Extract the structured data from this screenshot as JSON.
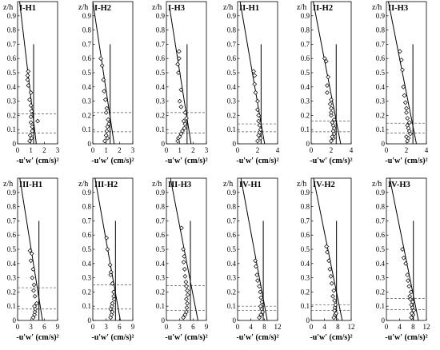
{
  "chart_data": [
    {
      "type": "scatter",
      "title": "I-H1",
      "ylabel": "z/h",
      "xlabel": "-u'w' (cm/s)²",
      "xlim": [
        0,
        3
      ],
      "ylim": [
        0,
        1
      ],
      "xticks": [
        0,
        1,
        2,
        3
      ],
      "points": [
        [
          0.9,
          0.02
        ],
        [
          1.05,
          0.04
        ],
        [
          0.95,
          0.06
        ],
        [
          1.1,
          0.09
        ],
        [
          1.1,
          0.12
        ],
        [
          1.0,
          0.15
        ],
        [
          1.5,
          0.16
        ],
        [
          1.0,
          0.19
        ],
        [
          1.05,
          0.23
        ],
        [
          1.0,
          0.27
        ],
        [
          0.9,
          0.31
        ],
        [
          1.0,
          0.36
        ],
        [
          0.8,
          0.41
        ],
        [
          0.75,
          0.45
        ],
        [
          0.75,
          0.48
        ],
        [
          0.8,
          0.51
        ]
      ],
      "fit_line": [
        [
          0.15,
          1.0
        ],
        [
          1.4,
          0.0
        ]
      ],
      "vertical_line": {
        "x": 1.2,
        "y0": 0,
        "y1": 0.7
      },
      "dashed_levels": [
        0.21,
        0.075
      ]
    },
    {
      "type": "scatter",
      "title": "I-H2",
      "ylabel": "z/h",
      "xlabel": "-u'w' (cm/s)²",
      "xlim": [
        0,
        3
      ],
      "ylim": [
        0,
        1
      ],
      "xticks": [
        0,
        1,
        2,
        3
      ],
      "points": [
        [
          0.9,
          0.02
        ],
        [
          1.1,
          0.04
        ],
        [
          1.0,
          0.06
        ],
        [
          1.05,
          0.09
        ],
        [
          1.1,
          0.12
        ],
        [
          1.2,
          0.14
        ],
        [
          1.15,
          0.17
        ],
        [
          1.0,
          0.22
        ],
        [
          1.05,
          0.25
        ],
        [
          0.95,
          0.31
        ],
        [
          0.85,
          0.37
        ],
        [
          0.8,
          0.45
        ],
        [
          0.7,
          0.55
        ],
        [
          0.6,
          0.6
        ]
      ],
      "fit_line": [
        [
          0.0,
          1.0
        ],
        [
          1.6,
          0.0
        ]
      ],
      "vertical_line": {
        "x": 1.3,
        "y0": 0,
        "y1": 0.7
      },
      "dashed_levels": [
        0.22,
        0.085
      ]
    },
    {
      "type": "scatter",
      "title": "I-H3",
      "ylabel": "z/h",
      "xlabel": "-u'w' (cm/s)²",
      "xlim": [
        0,
        3
      ],
      "ylim": [
        0,
        1
      ],
      "xticks": [
        0,
        1,
        2,
        3
      ],
      "points": [
        [
          0.85,
          0.02
        ],
        [
          0.9,
          0.04
        ],
        [
          1.0,
          0.05
        ],
        [
          1.1,
          0.07
        ],
        [
          1.2,
          0.09
        ],
        [
          1.35,
          0.11
        ],
        [
          1.4,
          0.14
        ],
        [
          1.3,
          0.16
        ],
        [
          1.5,
          0.18
        ],
        [
          1.4,
          0.22
        ],
        [
          1.1,
          0.26
        ],
        [
          1.0,
          0.3
        ],
        [
          1.1,
          0.38
        ],
        [
          0.9,
          0.5
        ],
        [
          0.85,
          0.56
        ],
        [
          0.95,
          0.6
        ],
        [
          0.95,
          0.65
        ]
      ],
      "fit_line": [
        [
          0.25,
          0.95
        ],
        [
          1.85,
          0.0
        ]
      ],
      "vertical_line": {
        "x": 1.55,
        "y0": 0,
        "y1": 0.7
      },
      "dashed_levels": [
        0.22,
        0.075
      ]
    },
    {
      "type": "scatter",
      "title": "II-H1",
      "ylabel": "z/h",
      "xlabel": "-u'w' (cm/s)²",
      "xlim": [
        0,
        4
      ],
      "ylim": [
        0,
        1
      ],
      "xticks": [
        0,
        2,
        4
      ],
      "points": [
        [
          2.0,
          0.02
        ],
        [
          2.3,
          0.04
        ],
        [
          2.1,
          0.06
        ],
        [
          2.2,
          0.08
        ],
        [
          2.3,
          0.1
        ],
        [
          2.2,
          0.13
        ],
        [
          2.1,
          0.16
        ],
        [
          2.1,
          0.2
        ],
        [
          2.0,
          0.24
        ],
        [
          2.0,
          0.3
        ],
        [
          1.8,
          0.36
        ],
        [
          1.7,
          0.42
        ],
        [
          1.7,
          0.48
        ],
        [
          1.6,
          0.51
        ]
      ],
      "fit_line": [
        [
          0.25,
          1.0
        ],
        [
          2.7,
          0.0
        ]
      ],
      "vertical_line": {
        "x": 2.35,
        "y0": 0,
        "y1": 0.7
      },
      "dashed_levels": [
        0.14,
        0.085
      ]
    },
    {
      "type": "scatter",
      "title": "II-H2",
      "ylabel": "z/h",
      "xlabel": "-u'w' (cm/s)²",
      "xlim": [
        0,
        4
      ],
      "ylim": [
        0,
        1
      ],
      "xticks": [
        0,
        2,
        4
      ],
      "points": [
        [
          2.0,
          0.02
        ],
        [
          2.2,
          0.04
        ],
        [
          2.1,
          0.05
        ],
        [
          2.3,
          0.07
        ],
        [
          2.2,
          0.09
        ],
        [
          2.3,
          0.11
        ],
        [
          2.2,
          0.13
        ],
        [
          2.1,
          0.15
        ],
        [
          2.3,
          0.17
        ],
        [
          2.0,
          0.2
        ],
        [
          2.0,
          0.22
        ],
        [
          2.0,
          0.25
        ],
        [
          1.9,
          0.28
        ],
        [
          2.0,
          0.31
        ],
        [
          1.6,
          0.36
        ],
        [
          1.6,
          0.41
        ],
        [
          1.7,
          0.47
        ],
        [
          1.5,
          0.58
        ],
        [
          1.35,
          0.6
        ]
      ],
      "fit_line": [
        [
          0.2,
          1.0
        ],
        [
          2.95,
          0.0
        ]
      ],
      "vertical_line": {
        "x": 2.5,
        "y0": 0,
        "y1": 0.7
      },
      "dashed_levels": [
        0.16,
        0.085
      ]
    },
    {
      "type": "scatter",
      "title": "II-H3",
      "ylabel": "z/h",
      "xlabel": "-u'w' (cm/s)²",
      "xlim": [
        0,
        4
      ],
      "ylim": [
        0,
        1
      ],
      "xticks": [
        0,
        2,
        4
      ],
      "points": [
        [
          2.1,
          0.02
        ],
        [
          2.2,
          0.04
        ],
        [
          2.0,
          0.05
        ],
        [
          2.4,
          0.07
        ],
        [
          2.3,
          0.09
        ],
        [
          2.2,
          0.11
        ],
        [
          2.1,
          0.13
        ],
        [
          2.3,
          0.15
        ],
        [
          2.1,
          0.18
        ],
        [
          2.0,
          0.22
        ],
        [
          2.0,
          0.25
        ],
        [
          1.9,
          0.29
        ],
        [
          1.8,
          0.34
        ],
        [
          1.7,
          0.4
        ],
        [
          1.6,
          0.52
        ],
        [
          1.5,
          0.59
        ],
        [
          1.35,
          0.65
        ]
      ],
      "fit_line": [
        [
          0.2,
          1.0
        ],
        [
          3.0,
          0.0
        ]
      ],
      "vertical_line": {
        "x": 2.65,
        "y0": 0,
        "y1": 0.7
      },
      "dashed_levels": [
        0.145,
        0.075
      ]
    },
    {
      "type": "scatter",
      "title": "III-H1",
      "ylabel": "z/h",
      "xlabel": "-u'w' (cm/s)²",
      "xlim": [
        0,
        9
      ],
      "ylim": [
        0,
        1
      ],
      "xticks": [
        0,
        3,
        6,
        9
      ],
      "points": [
        [
          3.5,
          0.02
        ],
        [
          3.8,
          0.04
        ],
        [
          3.9,
          0.06
        ],
        [
          4.0,
          0.08
        ],
        [
          3.8,
          0.1
        ],
        [
          4.3,
          0.12
        ],
        [
          3.9,
          0.17
        ],
        [
          3.6,
          0.21
        ],
        [
          3.7,
          0.25
        ],
        [
          3.3,
          0.3
        ],
        [
          3.5,
          0.36
        ],
        [
          3.0,
          0.42
        ],
        [
          3.2,
          0.47
        ],
        [
          2.8,
          0.49
        ]
      ],
      "fit_line": [
        [
          0.5,
          1.0
        ],
        [
          5.6,
          0.0
        ]
      ],
      "vertical_line": {
        "x": 4.8,
        "y0": 0,
        "y1": 0.7
      },
      "dashed_levels": [
        0.23,
        0.08
      ]
    },
    {
      "type": "scatter",
      "title": "III-H2",
      "ylabel": "z/h",
      "xlabel": "-u'w' (cm/s)²",
      "xlim": [
        0,
        9
      ],
      "ylim": [
        0,
        1
      ],
      "xticks": [
        0,
        3,
        6,
        9
      ],
      "points": [
        [
          4.0,
          0.02
        ],
        [
          4.2,
          0.04
        ],
        [
          4.4,
          0.06
        ],
        [
          4.0,
          0.08
        ],
        [
          4.3,
          0.1
        ],
        [
          4.4,
          0.12
        ],
        [
          4.8,
          0.15
        ],
        [
          4.7,
          0.17
        ],
        [
          4.7,
          0.2
        ],
        [
          4.4,
          0.26
        ],
        [
          4.0,
          0.32
        ],
        [
          4.1,
          0.34
        ],
        [
          3.9,
          0.39
        ],
        [
          3.3,
          0.5
        ],
        [
          3.1,
          0.58
        ]
      ],
      "fit_line": [
        [
          0.5,
          1.0
        ],
        [
          6.2,
          0.0
        ]
      ],
      "vertical_line": {
        "x": 5.1,
        "y0": 0,
        "y1": 0.7
      },
      "dashed_levels": [
        0.25,
        0.08
      ]
    },
    {
      "type": "scatter",
      "title": "III-H3",
      "ylabel": "z/h",
      "xlabel": "-u'w' (cm/s)²",
      "xlim": [
        0,
        9
      ],
      "ylim": [
        0,
        1
      ],
      "xticks": [
        0,
        3,
        6,
        9
      ],
      "points": [
        [
          3.8,
          0.02
        ],
        [
          4.2,
          0.04
        ],
        [
          4.5,
          0.06
        ],
        [
          4.6,
          0.09
        ],
        [
          4.7,
          0.12
        ],
        [
          4.5,
          0.15
        ],
        [
          4.8,
          0.18
        ],
        [
          4.7,
          0.21
        ],
        [
          4.5,
          0.24
        ],
        [
          4.4,
          0.27
        ],
        [
          4.2,
          0.31
        ],
        [
          4.1,
          0.36
        ],
        [
          3.9,
          0.41
        ],
        [
          4.0,
          0.45
        ],
        [
          3.8,
          0.5
        ],
        [
          3.4,
          0.65
        ]
      ],
      "fit_line": [
        [
          0.9,
          1.0
        ],
        [
          7.1,
          0.0
        ]
      ],
      "vertical_line": {
        "x": 5.4,
        "y0": 0,
        "y1": 0.7
      },
      "dashed_levels": [
        0.245,
        0.07
      ]
    },
    {
      "type": "scatter",
      "title": "IV-H1",
      "ylabel": "z/h",
      "xlabel": "-u'w' (cm/s)²",
      "xlim": [
        0,
        12
      ],
      "ylim": [
        0,
        1
      ],
      "xticks": [
        0,
        4,
        8,
        12
      ],
      "points": [
        [
          6.5,
          0.02
        ],
        [
          7.0,
          0.04
        ],
        [
          7.5,
          0.06
        ],
        [
          7.2,
          0.08
        ],
        [
          6.9,
          0.1
        ],
        [
          7.3,
          0.13
        ],
        [
          7.0,
          0.16
        ],
        [
          6.8,
          0.2
        ],
        [
          6.5,
          0.24
        ],
        [
          6.0,
          0.28
        ],
        [
          5.8,
          0.32
        ],
        [
          5.5,
          0.38
        ],
        [
          5.3,
          0.42
        ]
      ],
      "fit_line": [
        [
          1.0,
          1.0
        ],
        [
          8.9,
          0.0
        ]
      ],
      "vertical_line": {
        "x": 7.7,
        "y0": 0,
        "y1": 0.7
      },
      "dashed_levels": [
        0.1,
        0.07
      ]
    },
    {
      "type": "scatter",
      "title": "IV-H2",
      "ylabel": "z/h",
      "xlabel": "-u'w' (cm/s)²",
      "xlim": [
        0,
        12
      ],
      "ylim": [
        0,
        1
      ],
      "xticks": [
        0,
        4,
        8,
        12
      ],
      "points": [
        [
          6.8,
          0.02
        ],
        [
          7.2,
          0.04
        ],
        [
          7.5,
          0.05
        ],
        [
          7.0,
          0.07
        ],
        [
          7.1,
          0.09
        ],
        [
          7.3,
          0.11
        ],
        [
          7.0,
          0.14
        ],
        [
          6.5,
          0.17
        ],
        [
          6.8,
          0.21
        ],
        [
          6.2,
          0.26
        ],
        [
          5.9,
          0.31
        ],
        [
          5.6,
          0.36
        ],
        [
          5.3,
          0.42
        ],
        [
          4.8,
          0.48
        ],
        [
          4.6,
          0.52
        ]
      ],
      "fit_line": [
        [
          0.7,
          1.0
        ],
        [
          9.3,
          0.0
        ]
      ],
      "vertical_line": {
        "x": 7.6,
        "y0": 0,
        "y1": 0.7
      },
      "dashed_levels": [
        0.11,
        0.07
      ]
    },
    {
      "type": "scatter",
      "title": "IV-H3",
      "ylabel": "z/h",
      "xlabel": "-u'w' (cm/s)²",
      "xlim": [
        0,
        12
      ],
      "ylim": [
        0,
        1
      ],
      "xticks": [
        0,
        4,
        8,
        12
      ],
      "points": [
        [
          7.5,
          0.02
        ],
        [
          8.0,
          0.04
        ],
        [
          7.6,
          0.05
        ],
        [
          8.2,
          0.07
        ],
        [
          7.8,
          0.09
        ],
        [
          7.5,
          0.11
        ],
        [
          7.9,
          0.13
        ],
        [
          7.2,
          0.15
        ],
        [
          7.0,
          0.17
        ],
        [
          7.4,
          0.2
        ],
        [
          6.8,
          0.24
        ],
        [
          6.5,
          0.28
        ],
        [
          6.3,
          0.32
        ],
        [
          5.8,
          0.4
        ],
        [
          5.2,
          0.44
        ],
        [
          4.8,
          0.5
        ]
      ],
      "fit_line": [
        [
          1.0,
          1.0
        ],
        [
          9.6,
          0.0
        ]
      ],
      "vertical_line": {
        "x": 8.1,
        "y0": 0,
        "y1": 0.7
      },
      "dashed_levels": [
        0.155,
        0.075
      ]
    }
  ],
  "axis_text": {
    "y_ticks": [
      "0",
      "0.1",
      "0.2",
      "0.3",
      "0.4",
      "0.5",
      "0.6",
      "0.7",
      "0.8",
      "0.9"
    ]
  }
}
